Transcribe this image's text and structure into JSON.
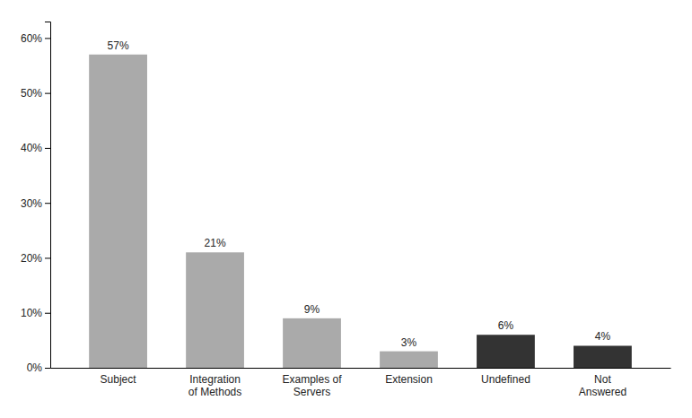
{
  "chart_data": {
    "type": "bar",
    "categories": [
      "Subject",
      "Integration\nof Methods",
      "Examples of\nServers",
      "Extension",
      "Undefined",
      "Not\nAnswered"
    ],
    "values": [
      57,
      21,
      9,
      3,
      6,
      4
    ],
    "value_labels": [
      "57%",
      "21%",
      "9%",
      "3%",
      "6%",
      "4%"
    ],
    "data_labels": true,
    "colors": [
      "#aaaaaa",
      "#aaaaaa",
      "#aaaaaa",
      "#aaaaaa",
      "#333333",
      "#333333"
    ],
    "ylim": [
      0,
      63
    ],
    "yticks": [
      {
        "value": 0,
        "label": "0%"
      },
      {
        "value": 10,
        "label": "10%"
      },
      {
        "value": 20,
        "label": "20%"
      },
      {
        "value": 30,
        "label": "30%"
      },
      {
        "value": 40,
        "label": "40%"
      },
      {
        "value": 50,
        "label": "50%"
      },
      {
        "value": 60,
        "label": "60%"
      }
    ],
    "grid": false
  }
}
